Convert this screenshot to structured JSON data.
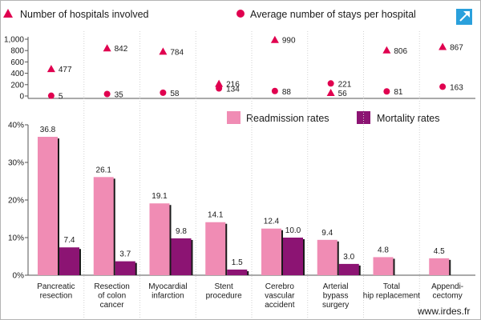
{
  "chart_data": [
    {
      "type": "scatter",
      "categories": [
        "Pancreatic resection",
        "Resection of colon cancer",
        "Myocardial infarction",
        "Stent procedure",
        "Cerebro vascular accident",
        "Arterial bypass surgery",
        "Total hip replacement",
        "Appendi-cectomy"
      ],
      "series": [
        {
          "name": "Number of hospitals involved",
          "marker": "triangle",
          "values": [
            477,
            842,
            784,
            216,
            990,
            56,
            806,
            867
          ]
        },
        {
          "name": "Average number of stays per hospital",
          "marker": "circle",
          "values": [
            5,
            35,
            58,
            134,
            88,
            221,
            81,
            163
          ]
        }
      ],
      "yticks": [
        "1,000",
        "800",
        "600",
        "400",
        "200",
        "0"
      ],
      "ylim": [
        0,
        1000
      ]
    },
    {
      "type": "bar",
      "categories": [
        "Pancreatic resection",
        "Resection of colon cancer",
        "Myocardial infarction",
        "Stent procedure",
        "Cerebro vascular accident",
        "Arterial bypass surgery",
        "Total hip replacement",
        "Appendi-cectomy"
      ],
      "series": [
        {
          "name": "Readmission rates",
          "values": [
            36.8,
            26.1,
            19.1,
            14.1,
            12.4,
            9.4,
            4.8,
            4.5
          ]
        },
        {
          "name": "Mortality rates",
          "values": [
            7.4,
            3.7,
            9.8,
            1.5,
            10.0,
            3.0,
            null,
            null
          ]
        }
      ],
      "value_labels": {
        "readmission": [
          "36.8",
          "26.1",
          "19.1",
          "14.1",
          "12.4",
          "9.4",
          "4.8",
          "4.5"
        ],
        "mortality": [
          "7.4",
          "3.7",
          "9.8",
          "1.5",
          "10.0",
          "3.0",
          "",
          ""
        ]
      },
      "yticks": [
        "40%",
        "30%",
        "20%",
        "10%",
        "0%"
      ],
      "ylim": [
        0,
        40
      ],
      "legend": "top-right"
    }
  ],
  "category_labels": [
    [
      "Pancreatic",
      "resection"
    ],
    [
      "Resection",
      "of colon",
      "cancer"
    ],
    [
      "Myocardial",
      "infarction"
    ],
    [
      "Stent",
      "procedure"
    ],
    [
      "Cerebro",
      "vascular",
      "accident"
    ],
    [
      "Arterial",
      "bypass",
      "surgery"
    ],
    [
      "Total",
      "hip replacement"
    ],
    [
      "Appendi-",
      "cectomy"
    ]
  ],
  "legend_top": {
    "triangle_label": "Number of hospitals involved",
    "circle_label": "Average number of stays per hospital"
  },
  "legend_bars": {
    "readmission_label": "Readmission rates",
    "mortality_label": "Mortality rates"
  },
  "colors": {
    "marker": "#e0004f",
    "readmission": "#f08cb4",
    "mortality": "#8c1473",
    "axis": "#555555",
    "expand_icon_bg": "#2aa0dc"
  },
  "footer": {
    "site": "www.irdes.fr"
  },
  "toolbar": {
    "expand_icon": "expand-arrow-icon"
  }
}
